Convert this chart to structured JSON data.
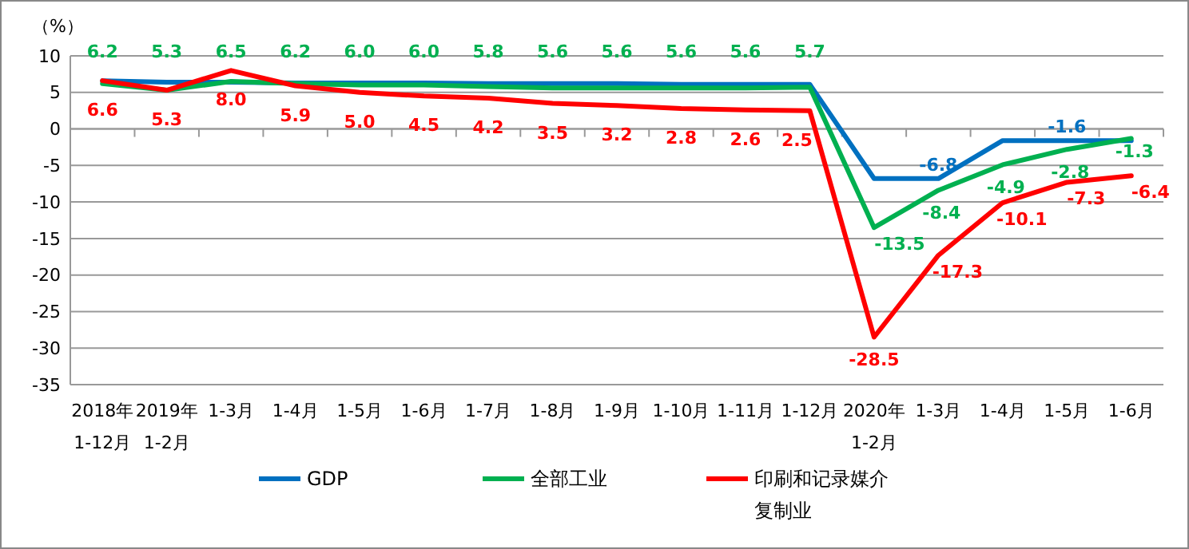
{
  "chart_data": {
    "type": "line",
    "ylabel": "（%）",
    "categories": [
      "2018年\n1-12月",
      "2019年\n1-2月",
      "1-3月",
      "1-4月",
      "1-5月",
      "1-6月",
      "1-7月",
      "1-8月",
      "1-9月",
      "1-10月",
      "1-11月",
      "1-12月",
      "2020年\n1-2月",
      "1-3月",
      "1-4月",
      "1-5月",
      "1-6月"
    ],
    "ylim": [
      -35,
      10
    ],
    "yticks": [
      -35,
      -30,
      -25,
      -20,
      -15,
      -10,
      -5,
      0,
      5,
      10
    ],
    "grid": "y",
    "legend": "bottom",
    "marker": "none",
    "line_style": "solid",
    "series": [
      {
        "name": "GDP",
        "color": "#0070c0",
        "values": [
          6.6,
          6.4,
          6.4,
          6.3,
          6.3,
          6.3,
          6.2,
          6.2,
          6.2,
          6.1,
          6.1,
          6.1,
          -6.8,
          -6.8,
          -1.6,
          -1.6,
          -1.6
        ],
        "value_labels": [
          null,
          null,
          null,
          null,
          null,
          null,
          null,
          null,
          null,
          null,
          null,
          null,
          null,
          "-6.8",
          null,
          "-1.6",
          null
        ]
      },
      {
        "name": "全部工业",
        "color": "#00b050",
        "values": [
          6.2,
          5.3,
          6.5,
          6.2,
          6.0,
          6.0,
          5.8,
          5.6,
          5.6,
          5.6,
          5.6,
          5.7,
          -13.5,
          -8.4,
          -4.9,
          -2.8,
          -1.3
        ],
        "value_labels": [
          "6.2",
          "5.3",
          "6.5",
          "6.2",
          "6.0",
          "6.0",
          "5.8",
          "5.6",
          "5.6",
          "5.6",
          "5.6",
          "5.7",
          "-13.5",
          "-8.4",
          "-4.9",
          "-2.8",
          "-1.3"
        ]
      },
      {
        "name": "印刷和记录媒介复制业",
        "color": "#ff0000",
        "values": [
          6.6,
          5.3,
          8.0,
          5.9,
          5.0,
          4.5,
          4.2,
          3.5,
          3.2,
          2.8,
          2.6,
          2.5,
          -28.5,
          -17.3,
          -10.1,
          -7.3,
          -6.4
        ],
        "value_labels": [
          "6.6",
          "5.3",
          "8.0",
          "5.9",
          "5.0",
          "4.5",
          "4.2",
          "3.5",
          "3.2",
          "2.8",
          "2.6",
          "2.5",
          "-28.5",
          "-17.3",
          "-10.1",
          "-7.3",
          "-6.4"
        ]
      }
    ]
  }
}
